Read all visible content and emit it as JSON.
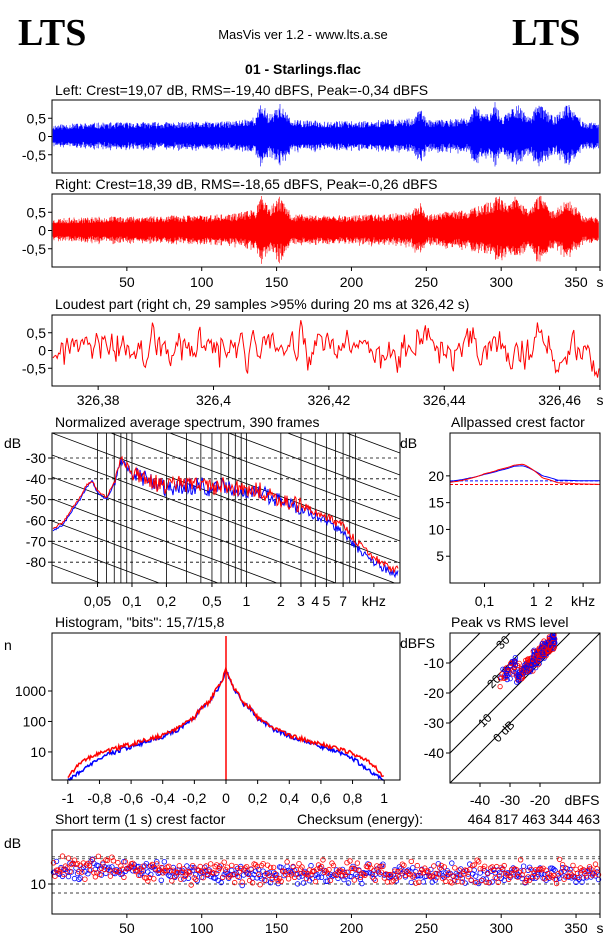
{
  "header": {
    "logo_left": "LTS",
    "logo_right": "LTS",
    "app_title": "MasVis ver 1.2 - www.lts.a.se",
    "file_title": "01 - Starlings.flac"
  },
  "colors": {
    "left": "#0000ff",
    "right": "#ff0000"
  },
  "chart_data": [
    {
      "id": "left-waveform",
      "type": "line",
      "title": "Left: Crest=19,07 dB, RMS=-19,40 dBFS, Peak=-0,34 dBFS",
      "yticks": [
        "0,5",
        "0",
        "-0,5"
      ],
      "ytick_values": [
        0.5,
        0,
        -0.5
      ],
      "ylim": [
        -1,
        1
      ],
      "xlim": [
        0,
        366
      ],
      "series_color": "#0000ff",
      "envelope": [
        [
          0,
          0.32
        ],
        [
          10,
          0.35
        ],
        [
          30,
          0.38
        ],
        [
          60,
          0.4
        ],
        [
          90,
          0.4
        ],
        [
          120,
          0.42
        ],
        [
          136,
          0.55
        ],
        [
          140,
          0.95
        ],
        [
          145,
          0.6
        ],
        [
          152,
          0.92
        ],
        [
          160,
          0.45
        ],
        [
          200,
          0.42
        ],
        [
          240,
          0.5
        ],
        [
          246,
          0.8
        ],
        [
          250,
          0.45
        ],
        [
          278,
          0.5
        ],
        [
          282,
          0.85
        ],
        [
          290,
          0.62
        ],
        [
          296,
          0.95
        ],
        [
          300,
          0.55
        ],
        [
          310,
          0.93
        ],
        [
          318,
          0.55
        ],
        [
          326,
          0.93
        ],
        [
          335,
          0.55
        ],
        [
          345,
          0.9
        ],
        [
          355,
          0.4
        ],
        [
          366,
          0.36
        ]
      ]
    },
    {
      "id": "right-waveform",
      "type": "line",
      "title": "Right: Crest=18,39 dB, RMS=-18,65 dBFS, Peak=-0,26 dBFS",
      "yticks": [
        "0,5",
        "0",
        "-0,5"
      ],
      "ytick_values": [
        0.5,
        0,
        -0.5
      ],
      "ylim": [
        -1,
        1
      ],
      "xlim": [
        0,
        366
      ],
      "series_color": "#ff0000",
      "xticks": [
        "50",
        "100",
        "150",
        "200",
        "250",
        "300",
        "350",
        "s"
      ],
      "xtick_values": [
        50,
        100,
        150,
        200,
        250,
        300,
        350,
        366
      ],
      "envelope": [
        [
          0,
          0.32
        ],
        [
          10,
          0.35
        ],
        [
          30,
          0.38
        ],
        [
          60,
          0.4
        ],
        [
          90,
          0.42
        ],
        [
          120,
          0.45
        ],
        [
          136,
          0.6
        ],
        [
          140,
          0.97
        ],
        [
          145,
          0.6
        ],
        [
          152,
          0.95
        ],
        [
          160,
          0.45
        ],
        [
          200,
          0.42
        ],
        [
          240,
          0.5
        ],
        [
          246,
          0.82
        ],
        [
          250,
          0.45
        ],
        [
          280,
          0.6
        ],
        [
          292,
          0.8
        ],
        [
          298,
          0.97
        ],
        [
          304,
          0.7
        ],
        [
          309,
          0.97
        ],
        [
          318,
          0.6
        ],
        [
          326,
          0.98
        ],
        [
          335,
          0.55
        ],
        [
          345,
          0.93
        ],
        [
          355,
          0.4
        ],
        [
          366,
          0.36
        ]
      ]
    },
    {
      "id": "loudest-part",
      "type": "line",
      "title": "Loudest part (right ch, 29 samples >95% during 20 ms at 326,42 s)",
      "yticks": [
        "0,5",
        "0",
        "-0,5"
      ],
      "ytick_values": [
        0.5,
        0,
        -0.5
      ],
      "ylim": [
        -1,
        1
      ],
      "xlim": [
        326.372,
        326.467
      ],
      "series_color": "#ff0000",
      "xticks": [
        "326,38",
        "326,4",
        "326,42",
        "326,44",
        "326,46",
        "s"
      ],
      "xtick_values": [
        326.38,
        326.4,
        326.42,
        326.44,
        326.46,
        326.467
      ]
    },
    {
      "id": "average-spectrum",
      "type": "line",
      "title": "Normalized average spectrum, 390 frames",
      "ylabel": "dB",
      "ylim": [
        -90,
        -18
      ],
      "yticks": [
        "-30",
        "-40",
        "-50",
        "-60",
        "-70",
        "-80"
      ],
      "ytick_values": [
        -30,
        -40,
        -50,
        -60,
        -70,
        -80
      ],
      "xlim_khz": [
        0.02,
        22
      ],
      "x_scale": "log",
      "xticks": [
        "0,05",
        "0,1",
        "0,2",
        "0,5",
        "1",
        "2",
        "3",
        "4",
        "5",
        "7",
        "kHz"
      ],
      "xtick_values": [
        0.05,
        0.1,
        0.2,
        0.5,
        1,
        2,
        3,
        4,
        5,
        7,
        13
      ],
      "series": [
        {
          "name": "Left",
          "color": "#0000ff",
          "points": [
            [
              0.02,
              -65
            ],
            [
              0.025,
              -62
            ],
            [
              0.03,
              -55
            ],
            [
              0.035,
              -50
            ],
            [
              0.04,
              -44
            ],
            [
              0.045,
              -41
            ],
            [
              0.05,
              -47
            ],
            [
              0.06,
              -50
            ],
            [
              0.07,
              -42
            ],
            [
              0.08,
              -32
            ],
            [
              0.09,
              -34
            ],
            [
              0.1,
              -38
            ],
            [
              0.13,
              -40
            ],
            [
              0.16,
              -43
            ],
            [
              0.2,
              -45
            ],
            [
              0.25,
              -43
            ],
            [
              0.3,
              -44
            ],
            [
              0.4,
              -43
            ],
            [
              0.5,
              -45
            ],
            [
              0.6,
              -44
            ],
            [
              0.8,
              -45
            ],
            [
              1,
              -47
            ],
            [
              1.2,
              -46
            ],
            [
              1.5,
              -48
            ],
            [
              2,
              -51
            ],
            [
              2.5,
              -53
            ],
            [
              3,
              -54
            ],
            [
              4,
              -58
            ],
            [
              5,
              -60
            ],
            [
              6,
              -63
            ],
            [
              7,
              -65
            ],
            [
              8,
              -70
            ],
            [
              10,
              -75
            ],
            [
              12,
              -79
            ],
            [
              15,
              -82
            ],
            [
              18,
              -85
            ],
            [
              22,
              -86
            ]
          ]
        },
        {
          "name": "Right",
          "color": "#ff0000",
          "points": [
            [
              0.02,
              -64
            ],
            [
              0.025,
              -61
            ],
            [
              0.03,
              -54
            ],
            [
              0.035,
              -49
            ],
            [
              0.04,
              -43
            ],
            [
              0.045,
              -41
            ],
            [
              0.05,
              -46
            ],
            [
              0.06,
              -49
            ],
            [
              0.07,
              -41
            ],
            [
              0.08,
              -31
            ],
            [
              0.09,
              -33
            ],
            [
              0.1,
              -37
            ],
            [
              0.13,
              -39
            ],
            [
              0.16,
              -42
            ],
            [
              0.2,
              -44
            ],
            [
              0.25,
              -42
            ],
            [
              0.3,
              -43
            ],
            [
              0.4,
              -42
            ],
            [
              0.5,
              -44
            ],
            [
              0.6,
              -43
            ],
            [
              0.8,
              -44
            ],
            [
              1,
              -46
            ],
            [
              1.2,
              -45
            ],
            [
              1.5,
              -47
            ],
            [
              2,
              -50
            ],
            [
              2.5,
              -52
            ],
            [
              3,
              -53
            ],
            [
              4,
              -56
            ],
            [
              5,
              -58
            ],
            [
              6,
              -61
            ],
            [
              7,
              -62
            ],
            [
              8,
              -67
            ],
            [
              10,
              -72
            ],
            [
              12,
              -76
            ],
            [
              15,
              -80
            ],
            [
              18,
              -83
            ],
            [
              22,
              -84
            ]
          ]
        }
      ]
    },
    {
      "id": "allpassed-crest",
      "type": "line",
      "title": "Allpassed crest factor",
      "ylabel": "dB",
      "ylim": [
        0,
        28
      ],
      "yticks": [
        "20",
        "15",
        "10",
        "5"
      ],
      "ytick_values": [
        20,
        15,
        10,
        5
      ],
      "xlim_khz": [
        0.02,
        22
      ],
      "x_scale": "log",
      "xticks": [
        "0,1",
        "1",
        "2",
        "kHz"
      ],
      "xtick_values": [
        0.1,
        1,
        2,
        10
      ],
      "reference_lines": [
        {
          "color": "#0000ff",
          "value": 19.07
        },
        {
          "color": "#ff0000",
          "value": 18.39
        }
      ],
      "series": [
        {
          "name": "Left",
          "color": "#0000ff",
          "points": [
            [
              0.02,
              19
            ],
            [
              0.05,
              19.6
            ],
            [
              0.1,
              20.3
            ],
            [
              0.2,
              21
            ],
            [
              0.4,
              21.8
            ],
            [
              0.6,
              21.9
            ],
            [
              1,
              21
            ],
            [
              1.5,
              20
            ],
            [
              3,
              19.2
            ],
            [
              8,
              19.1
            ],
            [
              22,
              19.1
            ]
          ]
        },
        {
          "name": "Right",
          "color": "#ff0000",
          "points": [
            [
              0.02,
              18.8
            ],
            [
              0.05,
              19.5
            ],
            [
              0.1,
              20.4
            ],
            [
              0.2,
              21.2
            ],
            [
              0.4,
              22
            ],
            [
              0.6,
              22.2
            ],
            [
              1,
              21
            ],
            [
              1.5,
              19.6
            ],
            [
              3,
              18.7
            ],
            [
              8,
              18.5
            ],
            [
              22,
              18.4
            ]
          ]
        }
      ]
    },
    {
      "id": "histogram",
      "type": "line",
      "title": "Histogram, \"bits\": 15,7/15,8",
      "ylabel": "n",
      "ylim_log": [
        1.2,
        80000
      ],
      "y_scale": "log",
      "yticks": [
        "1000",
        "100",
        "10"
      ],
      "ytick_values": [
        1000,
        100,
        10
      ],
      "xlim": [
        -1.1,
        1.1
      ],
      "xticks": [
        "-1",
        "-0,8",
        "-0,6",
        "-0,4",
        "-0,2",
        "0",
        "0,2",
        "0,4",
        "0,6",
        "0,8",
        "1"
      ],
      "xtick_values": [
        -1,
        -0.8,
        -0.6,
        -0.4,
        -0.2,
        0,
        0.2,
        0.4,
        0.6,
        0.8,
        1
      ],
      "series": [
        {
          "name": "Left",
          "color": "#0000ff",
          "points": [
            [
              0,
              5000
            ],
            [
              0.02,
              2400
            ],
            [
              0.05,
              1200
            ],
            [
              0.1,
              420
            ],
            [
              0.2,
              120
            ],
            [
              0.3,
              55
            ],
            [
              0.4,
              32
            ],
            [
              0.5,
              22
            ],
            [
              0.6,
              15
            ],
            [
              0.7,
              10
            ],
            [
              0.8,
              6
            ],
            [
              0.85,
              4
            ],
            [
              0.9,
              2.5
            ],
            [
              0.95,
              1.8
            ],
            [
              0.98,
              1.3
            ]
          ]
        },
        {
          "name": "Right",
          "color": "#ff0000",
          "points": [
            [
              0,
              5200
            ],
            [
              0.02,
              2600
            ],
            [
              0.05,
              1300
            ],
            [
              0.1,
              450
            ],
            [
              0.2,
              130
            ],
            [
              0.3,
              60
            ],
            [
              0.4,
              35
            ],
            [
              0.5,
              25
            ],
            [
              0.6,
              18
            ],
            [
              0.7,
              13
            ],
            [
              0.8,
              9
            ],
            [
              0.85,
              7
            ],
            [
              0.9,
              5
            ],
            [
              0.95,
              3
            ],
            [
              0.99,
              1.5
            ]
          ]
        }
      ]
    },
    {
      "id": "peak-vs-rms",
      "type": "scatter",
      "title": "Peak vs RMS level",
      "ylabel": "dBFS",
      "xlabel": "dBFS",
      "xlim": [
        -50,
        0
      ],
      "ylim": [
        -50,
        0
      ],
      "xticks": [
        "-40",
        "-30",
        "-20"
      ],
      "xtick_values": [
        -40,
        -30,
        -20
      ],
      "yticks": [
        "-10",
        "-20",
        "-30",
        "-40"
      ],
      "ytick_values": [
        -10,
        -20,
        -30,
        -40
      ],
      "crest_lines": [
        "40",
        "30",
        "20",
        "10",
        "0 dB"
      ],
      "crest_line_values": [
        40,
        30,
        20,
        10,
        0
      ],
      "cluster": {
        "rms_range": [
          -34,
          -15
        ],
        "crest_center": 13,
        "crest_spread": 4
      }
    },
    {
      "id": "short-term-crest",
      "type": "scatter",
      "title": "Short term (1 s) crest factor",
      "ylabel": "dB",
      "checksum_label": "Checksum (energy):",
      "checksum_value": "464 817 463 344 463",
      "ylim": [
        0,
        28
      ],
      "yticks": [
        "10"
      ],
      "ytick_values": [
        10
      ],
      "dashed_levels": [
        19.07,
        18.39,
        10,
        7
      ],
      "xlim": [
        0,
        366
      ],
      "xticks": [
        "50",
        "100",
        "150",
        "200",
        "250",
        "300",
        "350",
        "s"
      ],
      "xtick_values": [
        50,
        100,
        150,
        200,
        250,
        300,
        350,
        366
      ],
      "series": [
        {
          "name": "Left",
          "color": "#0000ff",
          "mean": 13.2,
          "spread": 2.6
        },
        {
          "name": "Right",
          "color": "#ff0000",
          "mean": 13.8,
          "spread": 3.0
        }
      ]
    }
  ]
}
